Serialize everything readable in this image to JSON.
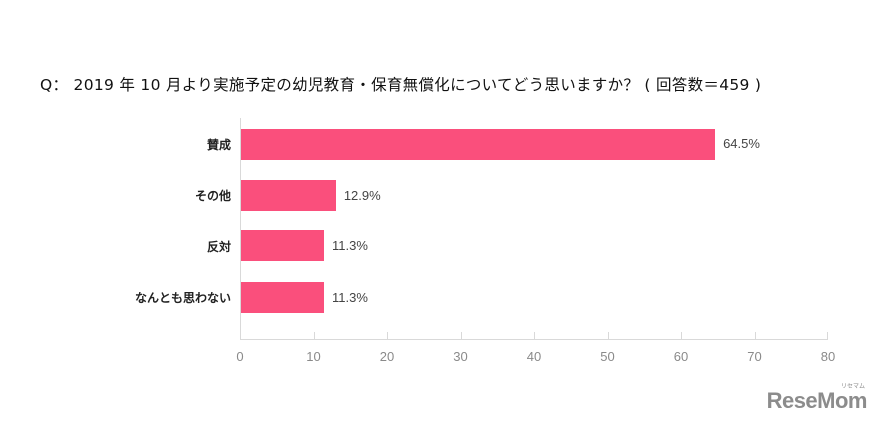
{
  "chart_data": {
    "type": "bar",
    "orientation": "horizontal",
    "title": "Q： 2019 年 10 月より実施予定の幼児教育・保育無償化についてどう思いますか？ ( 回答数＝459 )",
    "categories": [
      "賛成",
      "その他",
      "反対",
      "なんとも思わない"
    ],
    "values": [
      64.5,
      12.9,
      11.3,
      11.3
    ],
    "value_labels": [
      "64.5%",
      "12.9%",
      "11.3%",
      "11.3%"
    ],
    "xlabel": "",
    "ylabel": "",
    "xlim": [
      0,
      80
    ],
    "xticks": [
      "0",
      "10",
      "20",
      "30",
      "40",
      "50",
      "60",
      "70",
      "80"
    ],
    "grid": false,
    "legend": null,
    "bar_color": "#fa4f7c"
  },
  "logo": {
    "text": "ReseMom",
    "subtext": "リセマム"
  }
}
